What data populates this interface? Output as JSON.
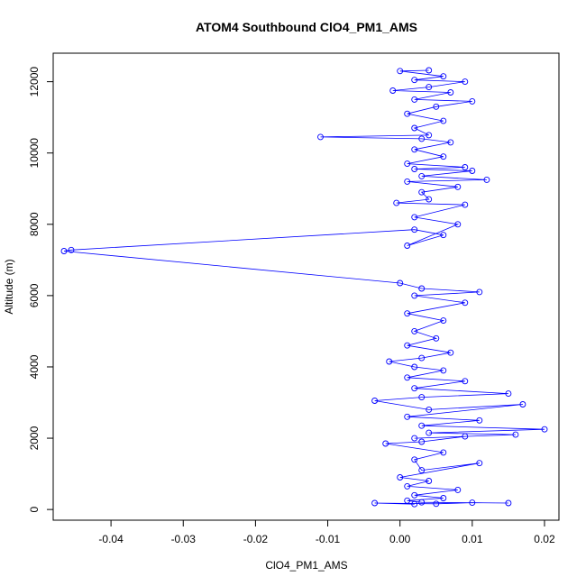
{
  "chart_data": {
    "type": "line",
    "title": "ATOM4 Southbound ClO4_PM1_AMS",
    "xlabel": "ClO4_PM1_AMS",
    "ylabel": "Altitude (m)",
    "xlim": [
      -0.048,
      0.022
    ],
    "ylim": [
      -300,
      12800
    ],
    "x_ticks": [
      -0.04,
      -0.03,
      -0.02,
      -0.01,
      0.0,
      0.01,
      0.02
    ],
    "x_tick_labels": [
      "-0.04",
      "-0.03",
      "-0.02",
      "-0.01",
      "0.00",
      "0.01",
      "0.02"
    ],
    "y_ticks": [
      0,
      2000,
      4000,
      6000,
      8000,
      10000,
      12000
    ],
    "y_tick_labels": [
      "0",
      "2000",
      "4000",
      "6000",
      "8000",
      "10000",
      "12000"
    ],
    "series": [
      {
        "name": "ClO4_PM1_AMS",
        "style": "line+points",
        "color": "#0000ff",
        "points": [
          [
            0.002,
            150
          ],
          [
            -0.0035,
            180
          ],
          [
            0.005,
            160
          ],
          [
            0.01,
            190
          ],
          [
            0.015,
            180
          ],
          [
            0.003,
            200
          ],
          [
            0.001,
            250
          ],
          [
            0.006,
            320
          ],
          [
            0.002,
            400
          ],
          [
            0.008,
            550
          ],
          [
            0.001,
            650
          ],
          [
            0.004,
            800
          ],
          [
            0.0,
            900
          ],
          [
            0.011,
            1300
          ],
          [
            0.003,
            1100
          ],
          [
            0.002,
            1400
          ],
          [
            0.006,
            1600
          ],
          [
            -0.002,
            1850
          ],
          [
            0.003,
            1900
          ],
          [
            0.009,
            2050
          ],
          [
            0.002,
            2000
          ],
          [
            0.016,
            2100
          ],
          [
            0.004,
            2150
          ],
          [
            0.02,
            2250
          ],
          [
            0.003,
            2350
          ],
          [
            0.011,
            2500
          ],
          [
            0.001,
            2600
          ],
          [
            0.017,
            2950
          ],
          [
            0.004,
            2800
          ],
          [
            -0.0035,
            3050
          ],
          [
            0.003,
            3150
          ],
          [
            0.015,
            3250
          ],
          [
            0.002,
            3400
          ],
          [
            0.009,
            3600
          ],
          [
            0.001,
            3700
          ],
          [
            0.006,
            3900
          ],
          [
            0.002,
            4000
          ],
          [
            -0.0015,
            4150
          ],
          [
            0.003,
            4250
          ],
          [
            0.007,
            4400
          ],
          [
            0.001,
            4600
          ],
          [
            0.005,
            4800
          ],
          [
            0.002,
            5000
          ],
          [
            0.006,
            5300
          ],
          [
            0.001,
            5500
          ],
          [
            0.009,
            5800
          ],
          [
            0.002,
            6000
          ],
          [
            0.011,
            6100
          ],
          [
            0.003,
            6200
          ],
          [
            0.0,
            6350
          ],
          [
            -0.0465,
            7250
          ],
          [
            -0.0455,
            7280
          ],
          [
            0.002,
            7850
          ],
          [
            0.006,
            7700
          ],
          [
            0.001,
            7400
          ],
          [
            0.008,
            8000
          ],
          [
            0.002,
            8200
          ],
          [
            0.009,
            8550
          ],
          [
            -0.0005,
            8600
          ],
          [
            0.004,
            8700
          ],
          [
            0.003,
            8900
          ],
          [
            0.008,
            9050
          ],
          [
            0.001,
            9200
          ],
          [
            0.012,
            9250
          ],
          [
            0.003,
            9350
          ],
          [
            0.01,
            9500
          ],
          [
            0.002,
            9550
          ],
          [
            0.009,
            9600
          ],
          [
            0.001,
            9700
          ],
          [
            0.006,
            9900
          ],
          [
            0.002,
            10100
          ],
          [
            0.007,
            10300
          ],
          [
            0.003,
            10400
          ],
          [
            -0.011,
            10450
          ],
          [
            0.004,
            10500
          ],
          [
            0.002,
            10700
          ],
          [
            0.006,
            10900
          ],
          [
            0.001,
            11100
          ],
          [
            0.005,
            11300
          ],
          [
            0.01,
            11450
          ],
          [
            0.002,
            11500
          ],
          [
            0.007,
            11700
          ],
          [
            -0.001,
            11750
          ],
          [
            0.004,
            11850
          ],
          [
            0.009,
            12000
          ],
          [
            0.002,
            12050
          ],
          [
            0.006,
            12150
          ],
          [
            0.0,
            12300
          ],
          [
            0.004,
            12320
          ]
        ]
      }
    ]
  }
}
